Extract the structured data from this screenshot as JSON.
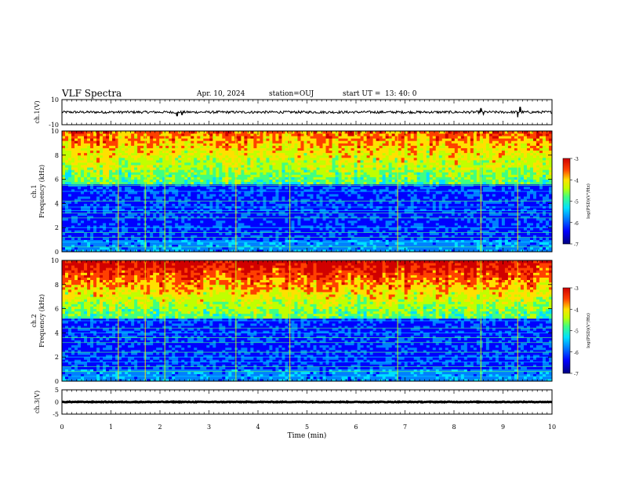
{
  "header": {
    "title": "VLF Spectra",
    "date": "Apr. 10, 2024",
    "station": "station=OUJ",
    "start_label": "start  UT  =",
    "start_time": "13: 40: 0"
  },
  "colors": {
    "colormap": [
      "#00007f",
      "#0000ff",
      "#0080ff",
      "#00e0ff",
      "#40ff80",
      "#c0ff00",
      "#ffe000",
      "#ff4000",
      "#d00000"
    ]
  },
  "chart_data": [
    {
      "type": "line",
      "ylabel": "ch.1(V)",
      "ylim": [
        -10,
        10
      ],
      "yticks": [
        "10",
        "-10"
      ],
      "baseline": 0,
      "noise_amplitude": 1,
      "spikes": [
        {
          "t": 2.35,
          "v": -3
        },
        {
          "t": 2.45,
          "v": -2
        },
        {
          "t": 8.55,
          "v": 3
        },
        {
          "t": 8.6,
          "v": -2
        },
        {
          "t": 9.3,
          "v": -4
        },
        {
          "t": 9.35,
          "v": 4
        }
      ],
      "xlim": [
        0,
        10
      ]
    },
    {
      "type": "heatmap",
      "ylabel": "ch.1",
      "ylabel2": "Frequency (kHz)",
      "ylim": [
        0,
        10
      ],
      "yticks": [
        "0",
        "2",
        "4",
        "6",
        "8",
        "10"
      ],
      "xlim": [
        0,
        10
      ],
      "colorbar": {
        "label": "log(PSD)(V²/Hz)",
        "range": [
          -7,
          -3
        ],
        "ticks": [
          "-3",
          "-4",
          "-5",
          "-6",
          "-7"
        ]
      },
      "noise_floor_khz": 5.5,
      "hlines_khz": [
        0.4,
        0.8,
        1.2,
        1.6,
        2.0,
        2.8,
        3.2,
        3.4,
        3.7,
        4.2,
        5.0,
        5.5
      ],
      "vlines_min": [
        1.15,
        1.7,
        2.1,
        3.55,
        4.65,
        6.85,
        8.55,
        9.3
      ]
    },
    {
      "type": "heatmap",
      "ylabel": "ch.2",
      "ylabel2": "Frequency (kHz)",
      "ylim": [
        0,
        10
      ],
      "yticks": [
        "0",
        "2",
        "4",
        "6",
        "8",
        "10"
      ],
      "xlim": [
        0,
        10
      ],
      "colorbar": {
        "label": "log(PSD)(V²/Hz)",
        "range": [
          -7,
          -3
        ],
        "ticks": [
          "-3",
          "-4",
          "-5",
          "-6",
          "-7"
        ]
      },
      "noise_floor_khz": 5.2,
      "hlines_khz": [
        0.4,
        0.8,
        1.2,
        1.6,
        2.0,
        2.4,
        3.2,
        3.6,
        4.0,
        4.4,
        5.0
      ],
      "vlines_min": [
        1.15,
        1.7,
        2.1,
        3.55,
        4.65,
        6.85,
        8.55,
        9.3
      ]
    },
    {
      "type": "line",
      "ylabel": "ch.3(V)",
      "ylim": [
        -5,
        5
      ],
      "yticks": [
        "5",
        "0",
        "-5"
      ],
      "baseline": 0,
      "noise_amplitude": 0.15,
      "xlim": [
        0,
        10
      ],
      "xlabel": "Time (min)",
      "xticks": [
        "0",
        "1",
        "2",
        "3",
        "4",
        "5",
        "6",
        "7",
        "8",
        "9",
        "10"
      ]
    }
  ]
}
